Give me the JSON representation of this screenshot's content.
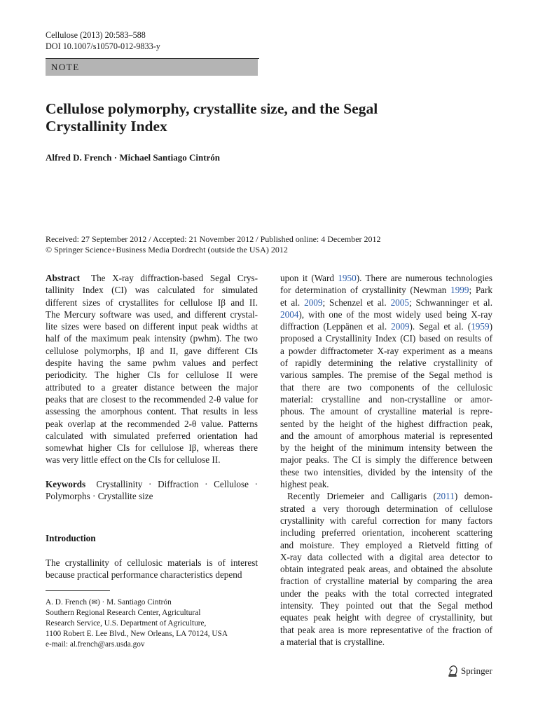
{
  "header": {
    "journal_line": "Cellulose (2013) 20:583–588",
    "doi_line": "DOI 10.1007/s10570-012-9833-y",
    "article_type": "NOTE"
  },
  "title_lines": [
    "Cellulose polymorphy, crystallite size, and the Segal",
    "Crystallinity Index"
  ],
  "authors": "Alfred D. French · Michael Santiago Cintrón",
  "dates": "Received: 27 September 2012 / Accepted: 21 November 2012 / Published online: 4 December 2012",
  "copyright": "© Springer Science+Business Media Dordrecht (outside the USA) 2012",
  "abstract": {
    "label": "Abstract",
    "lines": [
      "The X-ray diffraction-based Segal Crys-",
      "tallinity Index (CI) was calculated for simulated",
      "different sizes of crystallites for cellulose Iβ and II.",
      "The Mercury software was used, and different crystal-",
      "lite sizes were based on different input peak widths at",
      "half of the maximum peak intensity (pwhm). The two",
      "cellulose polymorphs, Iβ and II, gave different CIs",
      "despite having the same pwhm values and perfect",
      "periodicity. The higher CIs for cellulose II were",
      "attributed to a greater distance between the major",
      "peaks that are closest to the recommended 2-θ value for",
      "assessing the amorphous content. That results in less",
      "peak overlap at the recommended 2-θ value. Patterns",
      "calculated with simulated preferred orientation had",
      "somewhat higher CIs for cellulose Iβ, whereas there",
      "was very little effect on the CIs for cellulose II."
    ]
  },
  "keywords": {
    "label": "Keywords",
    "lines": [
      "Crystallinity · Diffraction · Cellulose ·",
      "Polymorphs · Crystallite size"
    ]
  },
  "introduction": {
    "heading": "Introduction",
    "left_lines": [
      "The crystallinity of cellulosic materials is of interest",
      "because practical performance characteristics depend"
    ],
    "right_lines": [
      "upon it (Ward {1950}). There are numerous technologies",
      "for determination of crystallinity (Newman {1999}; Park",
      "et al. {2009}; Schenzel et al. {2005}; Schwanninger et al.",
      "{2004}), with one of the most widely used being X-ray",
      "diffraction (Leppänen et al. {2009}). Segal et al. ({1959})",
      "proposed a Crystallinity Index (CI) based on results of",
      "a powder diffractometer X-ray experiment as a means",
      "of rapidly determining the relative crystallinity of",
      "various samples. The premise of the Segal method is",
      "that there are two components of the cellulosic",
      "material: crystalline and non-crystalline or amor-",
      "phous. The amount of crystalline material is repre-",
      "sented by the height of the highest diffraction peak,",
      "and the amount of amorphous material is represented",
      "by the height of the minimum intensity between the",
      "major peaks. The CI is simply the difference between",
      "these two intensities, divided by the intensity of the",
      "highest peak.",
      "Recently Driemeier and Calligaris ({2011}) demon-",
      "strated a very thorough determination of cellulose",
      "crystallinity with careful correction for many factors",
      "including preferred orientation, incoherent scattering",
      "and moisture. They employed a Rietveld fitting of",
      "X-ray data collected with a digital area detector to",
      "obtain integrated peak areas, and obtained the absolute",
      "fraction of crystalline material by comparing the area",
      "under the peaks with the total corrected integrated",
      "intensity. They pointed out that the Segal method",
      "equates peak height with degree of crystallinity, but",
      "that peak area is more representative of the fraction of",
      "a material that is crystalline."
    ]
  },
  "footnote": {
    "author1": "A. D. French",
    "author2": "M. Santiago Cintrón",
    "lines": [
      "Southern Regional Research Center, Agricultural",
      "Research Service, U.S. Department of Agriculture,",
      "1100 Robert E. Lee Blvd., New Orleans, LA 70124, USA",
      "e-mail: al.french@ars.usda.gov"
    ]
  },
  "publisher": "Springer",
  "colors": {
    "link": "#2a5caa",
    "note_band": "#b4b4b4"
  }
}
